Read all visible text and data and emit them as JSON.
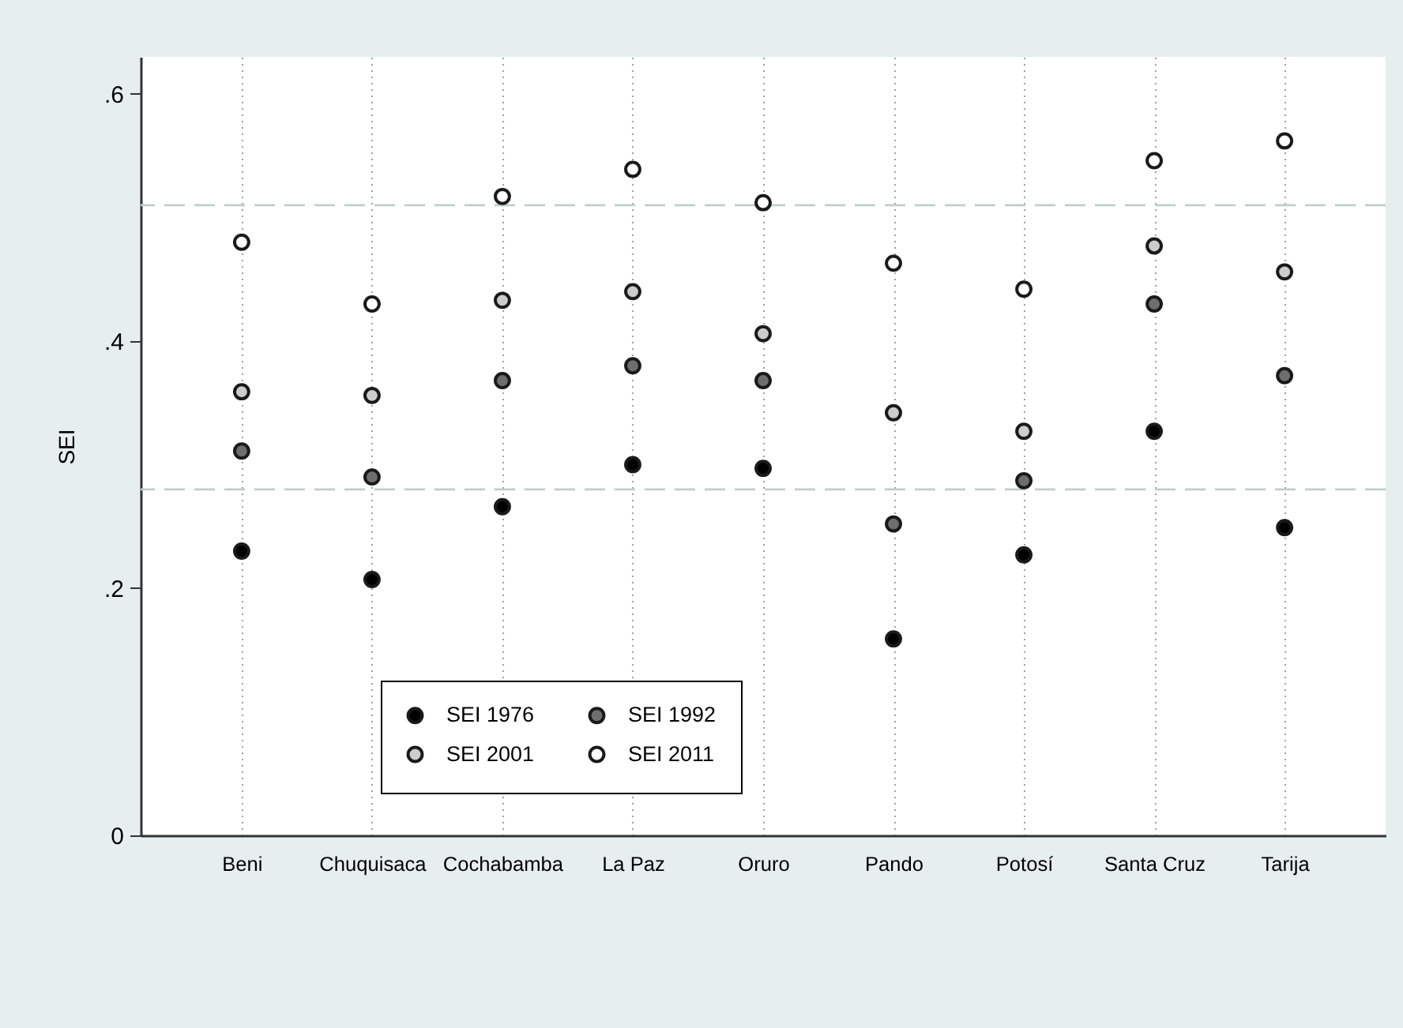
{
  "chart_data": {
    "type": "scatter",
    "ylabel": "SEI",
    "categories": [
      "Beni",
      "Chuquisaca",
      "Cochabamba",
      "La Paz",
      "Oruro",
      "Pando",
      "Potosí",
      "Santa Cruz",
      "Tarija"
    ],
    "series": [
      {
        "name": "SEI 1976",
        "color": "#000000",
        "values": [
          0.23,
          0.207,
          0.266,
          0.3,
          0.297,
          0.159,
          0.227,
          0.327,
          0.249
        ]
      },
      {
        "name": "SEI 1992",
        "color": "#6e6e6e",
        "values": [
          0.311,
          0.29,
          0.368,
          0.38,
          0.368,
          0.252,
          0.287,
          0.43,
          0.372
        ]
      },
      {
        "name": "SEI 2001",
        "color": "#cccccc",
        "values": [
          0.359,
          0.356,
          0.433,
          0.44,
          0.406,
          0.342,
          0.327,
          0.477,
          0.456
        ]
      },
      {
        "name": "SEI 2011",
        "color": "#ffffff",
        "values": [
          0.48,
          0.43,
          0.517,
          0.539,
          0.512,
          0.463,
          0.442,
          0.546,
          0.562
        ]
      }
    ],
    "ylim": [
      0,
      0.63
    ],
    "yticks": [
      0,
      {
        "value": 0.2,
        "label": ".2"
      },
      {
        "value": 0.4,
        "label": ".4"
      },
      {
        "value": 0.6,
        "label": ".6"
      }
    ],
    "ref_lines": [
      {
        "axis": "y",
        "value": 0.51,
        "color": "#bfcfca",
        "line_style": "dashed"
      },
      {
        "axis": "y",
        "value": 0.28,
        "color": "#bfcfca",
        "line_style": "dashed"
      }
    ],
    "grid": "x",
    "marker": "circle",
    "legend": "bottom left"
  }
}
